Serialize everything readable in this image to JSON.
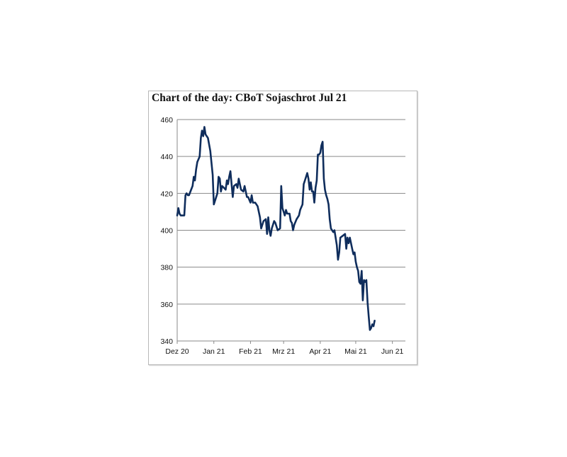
{
  "chart_data": {
    "type": "line",
    "title": "Chart of the day: CBoT Sojaschrot Jul 21",
    "xlabel": "",
    "ylabel": "",
    "ylim": [
      340,
      460
    ],
    "yticks": [
      340,
      360,
      380,
      400,
      420,
      440,
      460
    ],
    "xlim": [
      "2020-12-01",
      "2021-06-12"
    ],
    "xticks": [
      {
        "label": "Dez 20",
        "date": "2020-12-01"
      },
      {
        "label": "Jan 21",
        "date": "2021-01-01"
      },
      {
        "label": "Feb 21",
        "date": "2021-02-01"
      },
      {
        "label": "Mrz 21",
        "date": "2021-03-01"
      },
      {
        "label": "Apr 21",
        "date": "2021-04-01"
      },
      {
        "label": "Mai 21",
        "date": "2021-05-01"
      },
      {
        "label": "Jun 21",
        "date": "2021-06-01"
      }
    ],
    "grid": "horizontal",
    "line_color": "#0f2d5c",
    "series": [
      {
        "points": [
          [
            "2020-12-01",
            408
          ],
          [
            "2020-12-02",
            412
          ],
          [
            "2020-12-03",
            409
          ],
          [
            "2020-12-04",
            408
          ],
          [
            "2020-12-07",
            408
          ],
          [
            "2020-12-08",
            419
          ],
          [
            "2020-12-09",
            420
          ],
          [
            "2020-12-10",
            419
          ],
          [
            "2020-12-11",
            419
          ],
          [
            "2020-12-14",
            424
          ],
          [
            "2020-12-15",
            429
          ],
          [
            "2020-12-16",
            427
          ],
          [
            "2020-12-17",
            433
          ],
          [
            "2020-12-18",
            437
          ],
          [
            "2020-12-20",
            440
          ],
          [
            "2020-12-21",
            450
          ],
          [
            "2020-12-22",
            454
          ],
          [
            "2020-12-23",
            451
          ],
          [
            "2020-12-24",
            456
          ],
          [
            "2020-12-25",
            452
          ],
          [
            "2020-12-27",
            450
          ],
          [
            "2020-12-29",
            443
          ],
          [
            "2020-12-31",
            430
          ],
          [
            "2021-01-01",
            414
          ],
          [
            "2021-01-04",
            420
          ],
          [
            "2021-01-05",
            429
          ],
          [
            "2021-01-06",
            428
          ],
          [
            "2021-01-07",
            421
          ],
          [
            "2021-01-08",
            424
          ],
          [
            "2021-01-11",
            422
          ],
          [
            "2021-01-12",
            427
          ],
          [
            "2021-01-13",
            425
          ],
          [
            "2021-01-14",
            429
          ],
          [
            "2021-01-15",
            432
          ],
          [
            "2021-01-17",
            418
          ],
          [
            "2021-01-18",
            424
          ],
          [
            "2021-01-20",
            425
          ],
          [
            "2021-01-21",
            423
          ],
          [
            "2021-01-22",
            428
          ],
          [
            "2021-01-24",
            422
          ],
          [
            "2021-01-26",
            421
          ],
          [
            "2021-01-27",
            424
          ],
          [
            "2021-01-29",
            418
          ],
          [
            "2021-01-30",
            418
          ],
          [
            "2021-02-01",
            415
          ],
          [
            "2021-02-02",
            419
          ],
          [
            "2021-02-03",
            415
          ],
          [
            "2021-02-05",
            415
          ],
          [
            "2021-02-07",
            413
          ],
          [
            "2021-02-09",
            407
          ],
          [
            "2021-02-10",
            401
          ],
          [
            "2021-02-12",
            405
          ],
          [
            "2021-02-14",
            406
          ],
          [
            "2021-02-15",
            398
          ],
          [
            "2021-02-16",
            407
          ],
          [
            "2021-02-17",
            400
          ],
          [
            "2021-02-18",
            397
          ],
          [
            "2021-02-19",
            401
          ],
          [
            "2021-02-21",
            405
          ],
          [
            "2021-02-22",
            404
          ],
          [
            "2021-02-24",
            400
          ],
          [
            "2021-02-26",
            401
          ],
          [
            "2021-02-27",
            424
          ],
          [
            "2021-02-28",
            412
          ],
          [
            "2021-03-01",
            410
          ],
          [
            "2021-03-02",
            408
          ],
          [
            "2021-03-03",
            411
          ],
          [
            "2021-03-04",
            409
          ],
          [
            "2021-03-06",
            409
          ],
          [
            "2021-03-07",
            405
          ],
          [
            "2021-03-08",
            404
          ],
          [
            "2021-03-09",
            400
          ],
          [
            "2021-03-10",
            403
          ],
          [
            "2021-03-12",
            406
          ],
          [
            "2021-03-14",
            408
          ],
          [
            "2021-03-15",
            411
          ],
          [
            "2021-03-17",
            414
          ],
          [
            "2021-03-18",
            425
          ],
          [
            "2021-03-19",
            427
          ],
          [
            "2021-03-21",
            431
          ],
          [
            "2021-03-22",
            428
          ],
          [
            "2021-03-23",
            422
          ],
          [
            "2021-03-24",
            426
          ],
          [
            "2021-03-25",
            421
          ],
          [
            "2021-03-26",
            421
          ],
          [
            "2021-03-27",
            415
          ],
          [
            "2021-03-28",
            423
          ],
          [
            "2021-03-29",
            427
          ],
          [
            "2021-03-30",
            441
          ],
          [
            "2021-03-31",
            441
          ],
          [
            "2021-04-01",
            442
          ],
          [
            "2021-04-02",
            446
          ],
          [
            "2021-04-03",
            448
          ],
          [
            "2021-04-04",
            428
          ],
          [
            "2021-04-05",
            422
          ],
          [
            "2021-04-06",
            419
          ],
          [
            "2021-04-07",
            417
          ],
          [
            "2021-04-08",
            414
          ],
          [
            "2021-04-09",
            406
          ],
          [
            "2021-04-10",
            401
          ],
          [
            "2021-04-12",
            399
          ],
          [
            "2021-04-13",
            400
          ],
          [
            "2021-04-15",
            392
          ],
          [
            "2021-04-16",
            384
          ],
          [
            "2021-04-17",
            388
          ],
          [
            "2021-04-18",
            396
          ],
          [
            "2021-04-20",
            397
          ],
          [
            "2021-04-22",
            398
          ],
          [
            "2021-04-23",
            390
          ],
          [
            "2021-04-24",
            396
          ],
          [
            "2021-04-25",
            393
          ],
          [
            "2021-04-26",
            396
          ],
          [
            "2021-04-28",
            390
          ],
          [
            "2021-04-29",
            387
          ],
          [
            "2021-04-30",
            388
          ],
          [
            "2021-05-01",
            383
          ],
          [
            "2021-05-02",
            380
          ],
          [
            "2021-05-03",
            378
          ],
          [
            "2021-05-04",
            372
          ],
          [
            "2021-05-05",
            371
          ],
          [
            "2021-05-06",
            378
          ],
          [
            "2021-05-07",
            362
          ],
          [
            "2021-05-08",
            373
          ],
          [
            "2021-05-09",
            372
          ],
          [
            "2021-05-10",
            373
          ],
          [
            "2021-05-11",
            361
          ],
          [
            "2021-05-12",
            353
          ],
          [
            "2021-05-13",
            346
          ],
          [
            "2021-05-14",
            347
          ],
          [
            "2021-05-15",
            349
          ],
          [
            "2021-05-16",
            348
          ],
          [
            "2021-05-17",
            351
          ]
        ]
      }
    ]
  }
}
